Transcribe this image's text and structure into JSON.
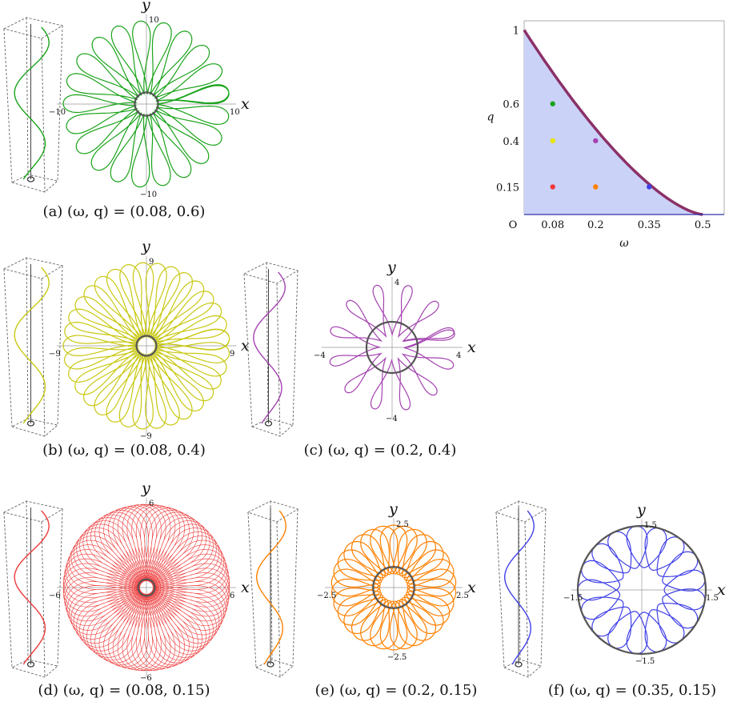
{
  "panels": [
    {
      "id": "a",
      "caption": "(a) (ω, q) = (0.08, 0.6)",
      "color": "#1aa31a",
      "kind": "star",
      "lobes": 22,
      "rIn": 0.12,
      "rOut": 1.0,
      "ring": 0.14,
      "ticks": {
        "ypos": "10",
        "xneg": "−10",
        "xpos": "10",
        "yneg": "−10"
      }
    },
    {
      "id": "b",
      "caption": "(b) (ω, q) = (0.08, 0.4)",
      "color": "#c8c813",
      "kind": "star",
      "lobes": 34,
      "rIn": 0.1,
      "rOut": 1.0,
      "ring": 0.12,
      "ticks": {
        "ypos": "9",
        "xneg": "−9",
        "xpos": "9",
        "yneg": "−9"
      }
    },
    {
      "id": "c",
      "caption": "(c) (ω, q) = (0.2, 0.4)",
      "color": "#a442b0",
      "kind": "star",
      "lobes": 13,
      "rIn": 0.2,
      "rOut": 1.0,
      "ring": 0.4,
      "ticks": {
        "ypos": "4",
        "xneg": "−4",
        "xpos": "4",
        "yneg": "−4"
      }
    },
    {
      "id": "d",
      "caption": "(d) (ω, q) = (0.08, 0.15)",
      "color": "#ee3a3a",
      "kind": "loops",
      "lobes": 80,
      "rIn": 0.08,
      "rOut": 1.0,
      "ring": 0.1,
      "ticks": {
        "ypos": "6",
        "xneg": "−6",
        "xpos": "6",
        "yneg": "−6"
      }
    },
    {
      "id": "e",
      "caption": "(e) (ω, q) = (0.2, 0.15)",
      "color": "#ff8000",
      "kind": "loops",
      "lobes": 30,
      "rIn": 0.22,
      "rOut": 1.0,
      "ring": 0.33,
      "ticks": {
        "ypos": "2.5",
        "xneg": "−2.5",
        "xpos": "2.5",
        "yneg": "−2.5"
      }
    },
    {
      "id": "f",
      "caption": "(f) (ω, q) = (0.35, 0.15)",
      "color": "#4040e8",
      "kind": "loops",
      "lobes": 17,
      "rIn": 0.35,
      "rOut": 1.0,
      "ring": 1.0,
      "ticks": {
        "ypos": "1.5",
        "xneg": "−1.5",
        "xpos": "1.5",
        "yneg": "−1.5"
      }
    }
  ],
  "axis_labels": {
    "x": "x",
    "y": "y"
  },
  "chart_data": {
    "type": "scatter",
    "xlabel": "ω",
    "ylabel": "q",
    "xlim": [
      0,
      0.56
    ],
    "ylim": [
      0,
      1.05
    ],
    "x_ticks": [
      "O",
      "0.08",
      "0.2",
      "0.35",
      "0.5"
    ],
    "y_ticks": [
      "0.15",
      "0.4",
      "0.6",
      "1"
    ],
    "fill_color": "#c8d0f8",
    "boundary": {
      "color": "#8b3168",
      "points": [
        [
          0,
          1.0
        ],
        [
          0.1,
          0.74
        ],
        [
          0.2,
          0.52
        ],
        [
          0.3,
          0.33
        ],
        [
          0.4,
          0.17
        ],
        [
          0.5,
          0.0
        ]
      ]
    },
    "points": [
      {
        "x": 0.08,
        "y": 0.6,
        "color": "#1aa31a"
      },
      {
        "x": 0.08,
        "y": 0.4,
        "color": "#e6e600"
      },
      {
        "x": 0.2,
        "y": 0.4,
        "color": "#a442b0"
      },
      {
        "x": 0.08,
        "y": 0.15,
        "color": "#ee3a3a"
      },
      {
        "x": 0.2,
        "y": 0.15,
        "color": "#ff8000"
      },
      {
        "x": 0.35,
        "y": 0.15,
        "color": "#4040e8"
      }
    ]
  }
}
